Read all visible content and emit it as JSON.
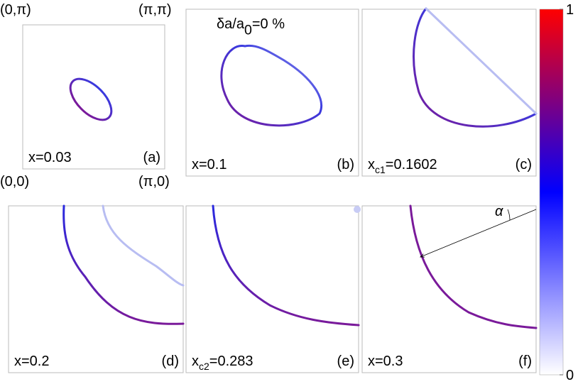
{
  "title": {
    "base": "δa/a",
    "sub": "0",
    "rest": "=0 %"
  },
  "corners": [
    "(0,π)",
    "(π,π)",
    "(0,0)",
    "(π,0)"
  ],
  "panels": [
    {
      "tag": "(a)",
      "label": {
        "base": "x=0.03"
      }
    },
    {
      "tag": "(b)",
      "label": {
        "base": "x=0.1"
      }
    },
    {
      "tag": "(c)",
      "label": {
        "base": "x",
        "sub": "c1",
        "rest": "=0.1602"
      }
    },
    {
      "tag": "(d)",
      "label": {
        "base": "x=0.2"
      }
    },
    {
      "tag": "(e)",
      "label": {
        "base": "x",
        "sub": "c2",
        "rest": "=0.283"
      }
    },
    {
      "tag": "(f)",
      "label": {
        "base": "x=0.3"
      }
    }
  ],
  "annotation": "α",
  "colorbar": {
    "lim": [
      0,
      1
    ],
    "ticks": [
      0,
      1
    ]
  }
}
